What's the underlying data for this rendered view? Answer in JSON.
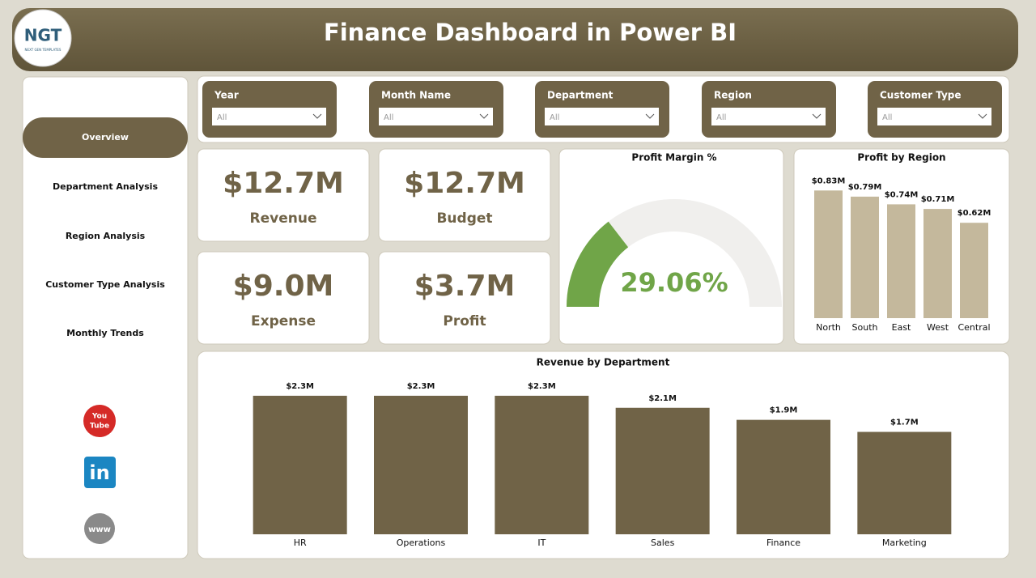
{
  "header": {
    "title": "Finance Dashboard in Power BI",
    "logo": "NGT",
    "logo_sub": "NEXT GEN TEMPLATES"
  },
  "nav": [
    "Overview",
    "Department Analysis",
    "Region Analysis",
    "Customer Type Analysis",
    "Monthly Trends"
  ],
  "filters": [
    {
      "label": "Year",
      "value": "All"
    },
    {
      "label": "Month Name",
      "value": "All"
    },
    {
      "label": "Department",
      "value": "All"
    },
    {
      "label": "Region",
      "value": "All"
    },
    {
      "label": "Customer Type",
      "value": "All"
    }
  ],
  "kpis": [
    {
      "value": "$12.7M",
      "label": "Revenue"
    },
    {
      "value": "$12.7M",
      "label": "Budget"
    },
    {
      "value": "$9.0M",
      "label": "Expense"
    },
    {
      "value": "$3.7M",
      "label": "Profit"
    }
  ],
  "social": {
    "youtube": [
      "You",
      "Tube"
    ],
    "linkedin": "in",
    "web": "www"
  },
  "chart_data": [
    {
      "type": "gauge",
      "title": "Profit Margin %",
      "value": 29.06,
      "value_label": "29.06%",
      "ylim": [
        0,
        100
      ],
      "color": "#70a548",
      "track_color": "#f0efed"
    },
    {
      "type": "bar",
      "title": "Profit by Region",
      "categories": [
        "North",
        "South",
        "East",
        "West",
        "Central"
      ],
      "values": [
        0.83,
        0.79,
        0.74,
        0.71,
        0.62
      ],
      "value_labels": [
        "$0.83M",
        "$0.79M",
        "$0.74M",
        "$0.71M",
        "$0.62M"
      ],
      "ylim": [
        0,
        0.9
      ],
      "color": "#c4b89c"
    },
    {
      "type": "bar",
      "title": "Revenue by Department",
      "categories": [
        "HR",
        "Operations",
        "IT",
        "Sales",
        "Finance",
        "Marketing"
      ],
      "values": [
        2.3,
        2.3,
        2.3,
        2.1,
        1.9,
        1.7
      ],
      "value_labels": [
        "$2.3M",
        "$2.3M",
        "$2.3M",
        "$2.1M",
        "$1.9M",
        "$1.7M"
      ],
      "ylim": [
        0,
        2.5
      ],
      "color": "#706347"
    }
  ]
}
